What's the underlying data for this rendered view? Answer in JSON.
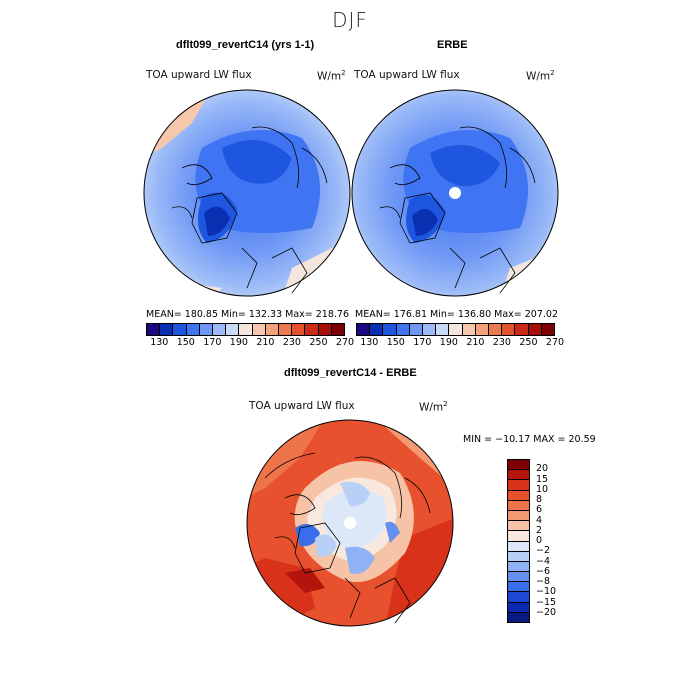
{
  "title": "DJF",
  "panels": [
    {
      "title": "dflt099_revertC14 (yrs 1-1)",
      "variable": "TOA upward LW flux",
      "units": "W/m",
      "units_sup": "2",
      "stats": "MEAN= 180.85    Min= 132.33    Max= 218.76",
      "field": {
        "mean": 180.85,
        "min": 132.33,
        "max": 218.76
      }
    },
    {
      "title": "ERBE",
      "variable": "TOA upward LW flux",
      "units": "W/m",
      "units_sup": "2",
      "stats": "MEAN= 176.81    Min= 136.80    Max= 207.02",
      "field": {
        "mean": 176.81,
        "min": 136.8,
        "max": 207.02
      }
    }
  ],
  "diff_panel": {
    "title": "dflt099_revertC14 - ERBE",
    "variable": "TOA upward LW flux",
    "units": "W/m",
    "units_sup": "2",
    "stats": "MIN = −10.17 MAX =  20.59",
    "field": {
      "min": -10.17,
      "max": 20.59
    }
  },
  "abs_colorbar": {
    "labels": [
      "130",
      "150",
      "170",
      "190",
      "210",
      "230",
      "250",
      "270"
    ],
    "colors": [
      "#1a0880",
      "#0a2fb0",
      "#1f56e0",
      "#3f74f2",
      "#6f98f5",
      "#9bbaf7",
      "#c8daf8",
      "#f3e6dc",
      "#f7c7ad",
      "#f4a27c",
      "#ee7a51",
      "#e4512f",
      "#cc2a16",
      "#a60e0a",
      "#7a0005"
    ]
  },
  "diff_colorbar": {
    "labels": [
      "20",
      "15",
      "10",
      "8",
      "6",
      "4",
      "2",
      "0",
      "−2",
      "−4",
      "−6",
      "−8",
      "−10",
      "−15",
      "−20"
    ],
    "colors": [
      "#7d0005",
      "#b3140c",
      "#d8321a",
      "#e8512e",
      "#ee7449",
      "#f49a73",
      "#f7c3a6",
      "#f8e8de",
      "#dce8f8",
      "#b9d0f6",
      "#8fb2f4",
      "#6491f0",
      "#386ee9",
      "#1c48d4",
      "#0a28b0",
      "#081a80"
    ]
  }
}
